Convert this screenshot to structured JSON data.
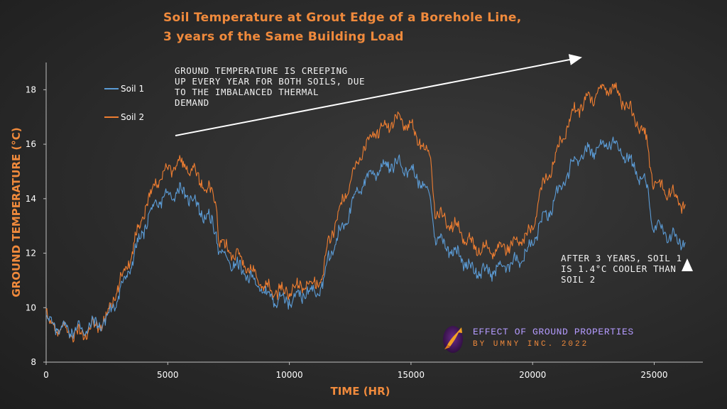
{
  "title": {
    "line1": "Soil Temperature at Grout Edge of a Borehole Line,",
    "line2": "3 years of the Same Building Load"
  },
  "annotations": {
    "creep": [
      "GROUND TEMPERATURE IS CREEPING",
      "UP EVERY YEAR FOR BOTH SOILS, DUE",
      "TO THE IMBALANCED THERMAL",
      "DEMAND"
    ],
    "after": [
      "AFTER 3 YEARS, SOIL 1",
      "IS 1.4°C COOLER THAN",
      "SOIL 2"
    ]
  },
  "branding": {
    "line1": "EFFECT OF GROUND PROPERTIES",
    "line2": "BY UMNY INC. 2022",
    "logo_icon": "fish-logo-icon"
  },
  "colors": {
    "soil1": "#5b9bd5",
    "soil2": "#ed7d31",
    "accent": "#f08a3c",
    "axis": "#bfbfbf"
  },
  "chart_data": {
    "type": "line",
    "title": "Soil Temperature at Grout Edge of a Borehole Line, 3 years of the Same Building Load",
    "xlabel": "TIME (HR)",
    "ylabel": "GROUND TEMPERATURE (°C)",
    "xlim": [
      0,
      27000
    ],
    "ylim": [
      8,
      19
    ],
    "xticks": [
      0,
      5000,
      10000,
      15000,
      20000,
      25000
    ],
    "yticks": [
      8,
      10,
      12,
      14,
      16,
      18
    ],
    "grid": false,
    "legend_position": "top-left",
    "series": [
      {
        "name": "Soil 1",
        "color": "#5b9bd5",
        "x": [
          0,
          100,
          500,
          1000,
          1500,
          2000,
          2500,
          2600,
          3000,
          3500,
          4000,
          4500,
          5000,
          5500,
          6000,
          6500,
          7000,
          7100,
          8000,
          8760,
          9000,
          9500,
          10000,
          10500,
          11000,
          11400,
          11600,
          12000,
          12500,
          13000,
          13500,
          14000,
          14500,
          15000,
          15500,
          15800,
          16000,
          17000,
          17520,
          18000,
          18500,
          19000,
          19500,
          20000,
          20100,
          20300,
          20700,
          21200,
          21700,
          22200,
          22700,
          23300,
          23800,
          24300,
          24700,
          24900,
          25000,
          25500,
          26000,
          26280
        ],
        "values": [
          9.8,
          9.4,
          9.3,
          9.2,
          9.2,
          9.4,
          9.5,
          9.8,
          10.5,
          11.6,
          12.9,
          13.8,
          14.1,
          14.3,
          14.0,
          13.4,
          12.9,
          12.0,
          11.4,
          10.8,
          10.5,
          10.3,
          10.3,
          10.5,
          10.6,
          10.9,
          11.8,
          12.6,
          13.6,
          14.6,
          15.0,
          15.2,
          15.3,
          15.0,
          14.5,
          14.0,
          12.6,
          11.9,
          11.4,
          11.3,
          11.4,
          11.6,
          11.8,
          12.3,
          12.6,
          13.1,
          13.5,
          14.5,
          15.3,
          15.7,
          15.9,
          16.1,
          15.6,
          15.0,
          14.4,
          13.3,
          13.0,
          12.7,
          12.5,
          12.3
        ]
      },
      {
        "name": "Soil 2",
        "color": "#ed7d31",
        "x": [
          0,
          100,
          500,
          1000,
          1500,
          2000,
          2500,
          2600,
          3000,
          3500,
          4000,
          4500,
          5000,
          5500,
          6000,
          6500,
          7000,
          7100,
          8000,
          8760,
          9000,
          9500,
          10000,
          10500,
          11000,
          11400,
          11600,
          12000,
          12500,
          13000,
          13500,
          14000,
          14500,
          15000,
          15500,
          15800,
          16000,
          17000,
          17520,
          18000,
          18500,
          19000,
          19500,
          20000,
          20100,
          20300,
          20700,
          21200,
          21700,
          22200,
          22700,
          23300,
          23800,
          24300,
          24700,
          24900,
          25000,
          25500,
          26000,
          26280
        ],
        "values": [
          9.8,
          9.4,
          9.2,
          9.1,
          9.0,
          9.3,
          9.6,
          10.0,
          10.8,
          12.0,
          13.5,
          14.6,
          15.1,
          15.3,
          15.1,
          14.5,
          13.9,
          12.4,
          11.8,
          11.0,
          10.7,
          10.6,
          10.6,
          10.8,
          10.9,
          11.2,
          12.4,
          13.4,
          14.6,
          15.8,
          16.4,
          16.7,
          16.9,
          16.6,
          16.0,
          15.5,
          13.5,
          12.8,
          12.3,
          12.1,
          12.1,
          12.3,
          12.5,
          12.8,
          13.3,
          14.2,
          15.0,
          16.2,
          17.2,
          17.6,
          17.9,
          18.1,
          17.5,
          16.8,
          16.1,
          14.9,
          14.6,
          14.3,
          14.0,
          13.7
        ]
      }
    ]
  }
}
